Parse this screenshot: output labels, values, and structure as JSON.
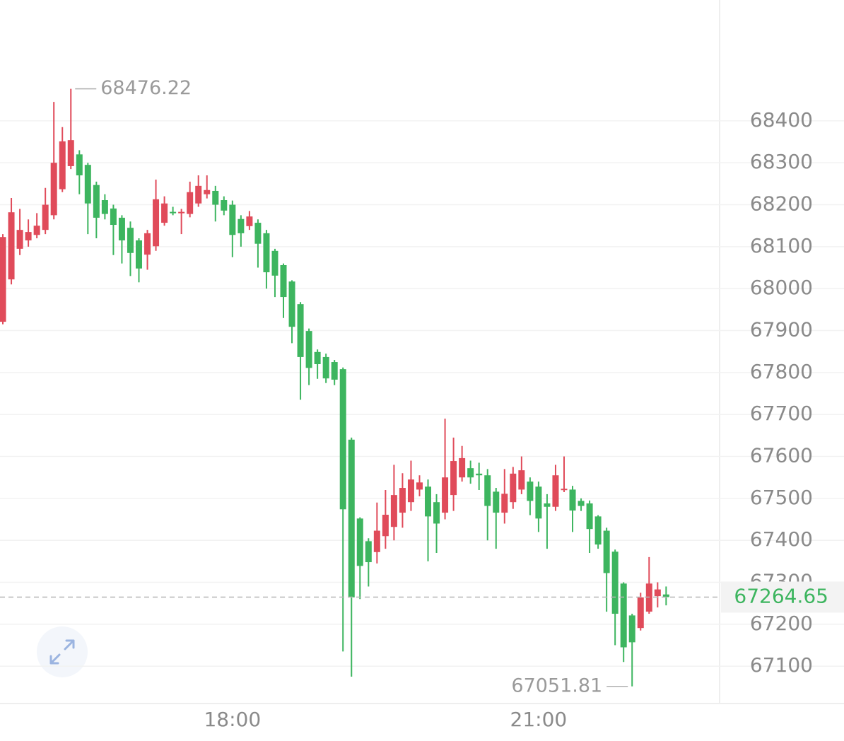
{
  "chart_data": {
    "type": "candlestick",
    "categories": [
      null,
      null,
      null,
      null,
      null,
      null,
      null,
      null,
      null,
      null,
      null,
      null,
      null,
      null,
      null,
      null,
      null,
      null,
      null,
      null,
      null,
      null,
      null,
      null,
      null,
      null,
      null,
      "18:00",
      null,
      null,
      null,
      null,
      null,
      null,
      null,
      null,
      null,
      null,
      null,
      null,
      null,
      null,
      null,
      null,
      null,
      null,
      null,
      null,
      null,
      null,
      null,
      null,
      null,
      null,
      null,
      null,
      null,
      null,
      null,
      null,
      null,
      null,
      null,
      "21:00",
      null,
      null,
      null,
      null,
      null,
      null,
      null,
      null,
      null,
      null,
      null,
      null,
      null,
      null,
      null
    ],
    "open": [
      67921,
      68022,
      68095,
      68115,
      68128,
      68140,
      68175,
      68237,
      68292,
      68320,
      68295,
      68247,
      68211,
      68191,
      68169,
      68145,
      68115,
      68081,
      68101,
      68157,
      68183,
      68180,
      68178,
      68203,
      68225,
      68233,
      68211,
      68200,
      68166,
      68149,
      68157,
      68132,
      68090,
      68056,
      68017,
      67963,
      67899,
      67849,
      67837,
      67825,
      67808,
      67640,
      67452,
      67398,
      67372,
      67410,
      67432,
      67466,
      67491,
      67521,
      67528,
      67491,
      67466,
      67508,
      67550,
      67572,
      67559,
      67555,
      67516,
      67466,
      67491,
      67521,
      67540,
      67528,
      67488,
      67480,
      67521,
      67521,
      67494,
      67488,
      67457,
      67423,
      67373,
      67297,
      67221,
      67191,
      67230,
      67267,
      67271
    ],
    "high": [
      68130,
      68216,
      68190,
      68165,
      68180,
      68240,
      68445,
      68385,
      68476.22,
      68330,
      68300,
      68255,
      68225,
      68200,
      68175,
      68160,
      68120,
      68140,
      68260,
      68220,
      68195,
      68190,
      68255,
      68270,
      68270,
      68245,
      68220,
      68210,
      68175,
      68185,
      68165,
      68140,
      68095,
      68060,
      68020,
      67968,
      67905,
      67855,
      67845,
      67830,
      67812,
      67645,
      67455,
      67405,
      67490,
      67520,
      67580,
      67560,
      67590,
      67555,
      67545,
      67510,
      67690,
      67645,
      67625,
      67590,
      67585,
      67570,
      67525,
      67570,
      67575,
      67600,
      67550,
      67540,
      67510,
      67580,
      67600,
      67530,
      67500,
      67495,
      67460,
      67430,
      67378,
      67300,
      67225,
      67275,
      67360,
      67300,
      67290
    ],
    "low": [
      67915,
      68010,
      68080,
      68100,
      68120,
      68130,
      68165,
      68230,
      68285,
      68225,
      68130,
      68120,
      68165,
      68080,
      68060,
      68030,
      68015,
      68045,
      68090,
      68150,
      68175,
      68130,
      68170,
      68195,
      68215,
      68160,
      68175,
      68075,
      68100,
      68140,
      68050,
      68000,
      67980,
      67930,
      67870,
      67735,
      67770,
      67785,
      67775,
      67770,
      67135,
      67075,
      67260,
      67290,
      67345,
      67380,
      67400,
      67430,
      67470,
      67505,
      67350,
      67370,
      67450,
      67470,
      67540,
      67535,
      67520,
      67400,
      67380,
      67440,
      67475,
      67510,
      67460,
      67420,
      67380,
      67470,
      67515,
      67420,
      67470,
      67370,
      67380,
      67230,
      67150,
      67110,
      67051.81,
      67185,
      67225,
      67240,
      67245
    ],
    "close": [
      68123,
      68182,
      68140,
      68135,
      68150,
      68200,
      68300,
      68351,
      68354,
      68270,
      68203,
      68169,
      68178,
      68152,
      68115,
      68085,
      68048,
      68132,
      68213,
      68203,
      68180,
      68183,
      68230,
      68245,
      68235,
      68200,
      68186,
      68128,
      68132,
      68172,
      68107,
      68039,
      68031,
      67980,
      67909,
      67837,
      67811,
      67820,
      67786,
      67783,
      67474,
      67264,
      67339,
      67348,
      67423,
      67461,
      67508,
      67525,
      67545,
      67538,
      67457,
      67440,
      67550,
      67589,
      67596,
      67550,
      67555,
      67482,
      67466,
      67511,
      67559,
      67567,
      67494,
      67452,
      67480,
      67555,
      67523,
      67471,
      67482,
      67427,
      67390,
      67322,
      67225,
      67145,
      67157,
      67264,
      67297,
      67283,
      67264.65
    ],
    "up_color": "#e04b5a",
    "down_color": "#3db55f",
    "ylim": [
      67011,
      68688
    ],
    "yticks": [
      67100,
      67200,
      67300,
      67400,
      67500,
      67600,
      67700,
      67800,
      67900,
      68000,
      68100,
      68200,
      68300,
      68400
    ],
    "grid": true
  }
}
